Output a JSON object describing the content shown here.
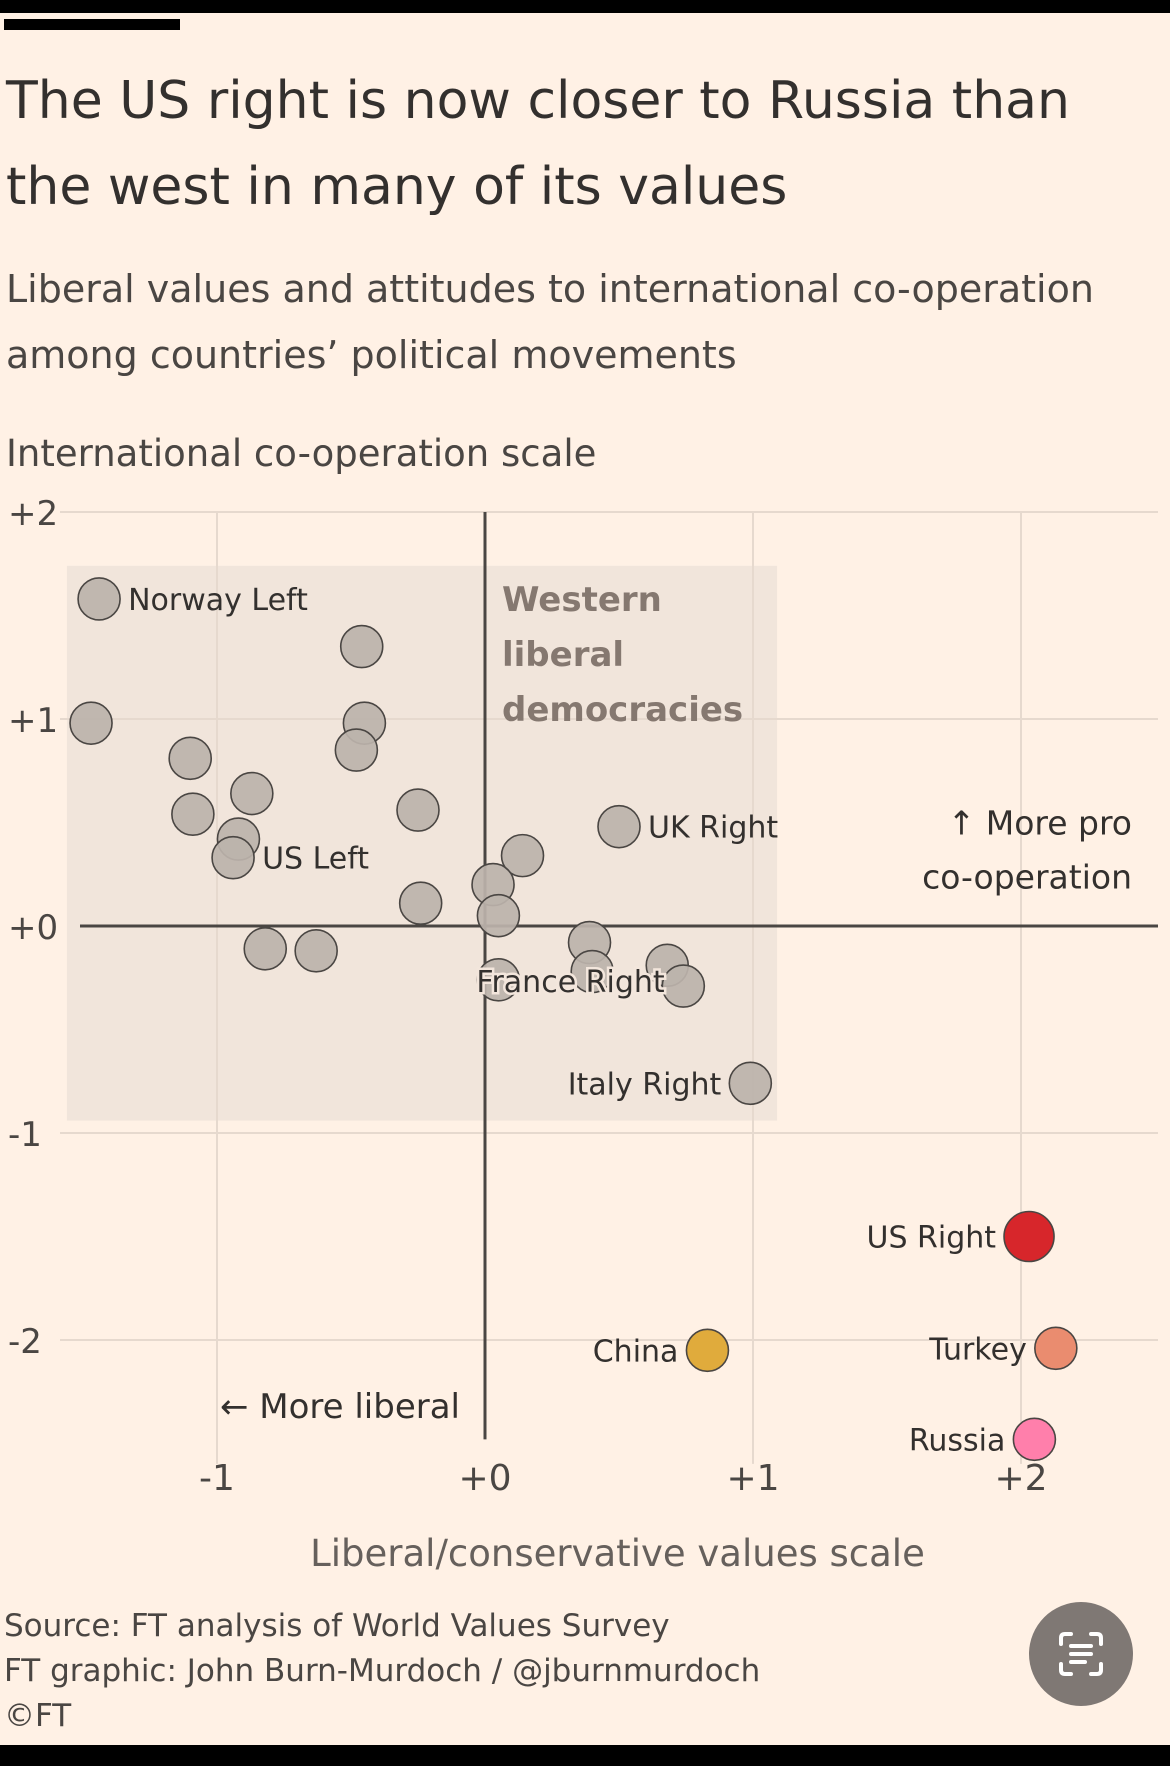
{
  "header": {
    "title": "The US right is now closer to Russia than the west in many of its values",
    "subtitle": "Liberal values and attitudes to international co-operation among countries’ political movements"
  },
  "chart_data": {
    "type": "scatter",
    "title": "The US right is now closer to Russia than the west in many of its values",
    "subtitle": "Liberal values and attitudes to international co-operation among countries’ political movements",
    "xlabel": "Liberal/conservative values scale",
    "ylabel": "International co-operation scale",
    "xlim": [
      -1.6,
      2.5
    ],
    "ylim": [
      -2.55,
      2
    ],
    "x_ticks": [
      {
        "v": -1,
        "label": "-1"
      },
      {
        "v": 0,
        "label": "+0"
      },
      {
        "v": 1,
        "label": "+1"
      },
      {
        "v": 2,
        "label": "+2"
      }
    ],
    "y_ticks": [
      {
        "v": 2,
        "label": "+2"
      },
      {
        "v": 1,
        "label": "+1"
      },
      {
        "v": 0,
        "label": "+0"
      },
      {
        "v": -1,
        "label": "-1"
      },
      {
        "v": -2,
        "label": "-2"
      }
    ],
    "grid": true,
    "region": {
      "label_lines": [
        "Western",
        "liberal",
        "democracies"
      ],
      "x": [
        -1.56,
        1.09
      ],
      "y": [
        -0.94,
        1.74
      ]
    },
    "annotations": {
      "more_coop": [
        "↑ More pro",
        "co-operation"
      ],
      "more_liberal": "← More liberal"
    },
    "colors": {
      "default": "#bcb3ab",
      "us_right": "#d7262b",
      "china": "#e0ab3c",
      "turkey": "#ea8c6f",
      "russia": "#ff7fab",
      "region": "#efe3d9",
      "grid": "#e6d9ce",
      "axis": "#4a4643"
    },
    "points": [
      {
        "x": -1.44,
        "y": 1.58,
        "label": "Norway Left",
        "label_side": "right"
      },
      {
        "x": -0.46,
        "y": 1.35
      },
      {
        "x": -1.47,
        "y": 0.98
      },
      {
        "x": -0.45,
        "y": 0.98
      },
      {
        "x": -0.48,
        "y": 0.85
      },
      {
        "x": -1.1,
        "y": 0.81
      },
      {
        "x": -0.87,
        "y": 0.64
      },
      {
        "x": -1.09,
        "y": 0.54
      },
      {
        "x": -0.25,
        "y": 0.56
      },
      {
        "x": -0.92,
        "y": 0.42
      },
      {
        "x": -0.94,
        "y": 0.33,
        "label": "US Left",
        "label_side": "right"
      },
      {
        "x": 0.14,
        "y": 0.34
      },
      {
        "x": 0.5,
        "y": 0.48,
        "label": "UK Right",
        "label_side": "right"
      },
      {
        "x": 0.03,
        "y": 0.2
      },
      {
        "x": 0.05,
        "y": 0.05
      },
      {
        "x": -0.24,
        "y": 0.11
      },
      {
        "x": -0.82,
        "y": -0.11
      },
      {
        "x": -0.63,
        "y": -0.12
      },
      {
        "x": 0.39,
        "y": -0.08
      },
      {
        "x": 0.4,
        "y": -0.22
      },
      {
        "x": 0.05,
        "y": -0.26,
        "label": "France Right",
        "label_side": "right-overlap"
      },
      {
        "x": 0.68,
        "y": -0.19
      },
      {
        "x": 0.74,
        "y": -0.29
      },
      {
        "x": 0.99,
        "y": -0.76,
        "label": "Italy Right",
        "label_side": "left"
      },
      {
        "x": 2.03,
        "y": -1.5,
        "label": "US Right",
        "label_side": "left",
        "color_key": "us_right",
        "big": true
      },
      {
        "x": 0.83,
        "y": -2.05,
        "label": "China",
        "label_side": "left",
        "color_key": "china"
      },
      {
        "x": 2.13,
        "y": -2.04,
        "label": "Turkey",
        "label_side": "left",
        "color_key": "turkey"
      },
      {
        "x": 2.05,
        "y": -2.48,
        "label": "Russia",
        "label_side": "left",
        "color_key": "russia"
      }
    ]
  },
  "footer": {
    "source": "Source: FT analysis of World Values Survey",
    "credit": "FT graphic: John Burn-Murdoch / @jburnmurdoch",
    "copyright": "©FT"
  },
  "icons": {
    "lens_button": "scan-text-icon"
  }
}
